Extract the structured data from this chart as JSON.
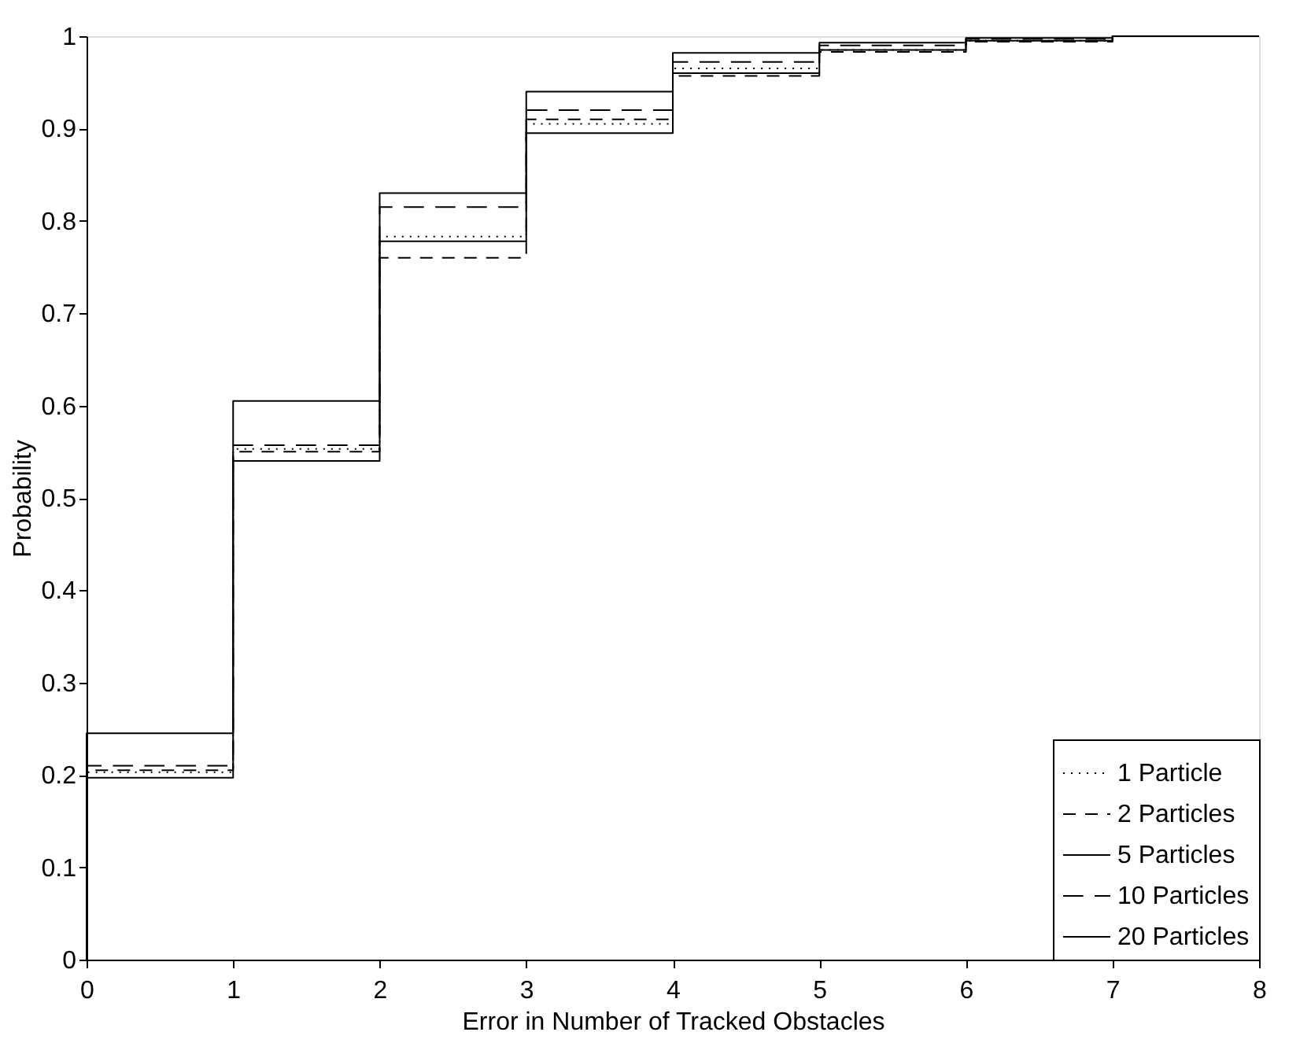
{
  "chart_data": {
    "type": "step",
    "xlabel": "Error in Number of Tracked Obstacles",
    "ylabel": "Probability",
    "x": [
      0,
      0,
      1,
      2,
      3,
      4,
      5,
      6,
      7,
      8
    ],
    "series": [
      {
        "name": "1 Particle",
        "color": "#000000",
        "line_style": "dotted",
        "values": [
          0,
          0.203,
          0.553,
          0.783,
          0.905,
          0.965,
          0.985,
          0.995,
          1.0,
          1.0
        ]
      },
      {
        "name": "2 Particles",
        "color": "#000000",
        "line_style": "dashed",
        "values": [
          0,
          0.205,
          0.55,
          0.76,
          0.91,
          0.957,
          0.983,
          0.994,
          1.0,
          1.0
        ]
      },
      {
        "name": "5 Particles",
        "color": "#000000",
        "line_style": "solid",
        "values": [
          0,
          0.197,
          0.54,
          0.778,
          0.895,
          0.96,
          0.985,
          0.995,
          1.0,
          1.0
        ]
      },
      {
        "name": "10 Particles",
        "color": "#000000",
        "line_style": "dashed",
        "values": [
          0,
          0.21,
          0.557,
          0.815,
          0.92,
          0.972,
          0.99,
          0.997,
          1.0,
          1.0
        ]
      },
      {
        "name": "20 Particles",
        "color": "#000000",
        "line_style": "solid",
        "values": [
          0,
          0.245,
          0.605,
          0.83,
          0.94,
          0.982,
          0.993,
          0.998,
          1.0,
          1.0
        ]
      }
    ],
    "xlim": [
      0,
      8
    ],
    "xticks": [
      0,
      1,
      2,
      3,
      4,
      5,
      6,
      7,
      8
    ],
    "ylim": [
      0,
      1
    ],
    "yticks": [
      0,
      0.1,
      0.2,
      0.3,
      0.4,
      0.5,
      0.6,
      0.7,
      0.8,
      0.9,
      1
    ],
    "grid": false,
    "legend": "bottom right",
    "marker": "none"
  }
}
